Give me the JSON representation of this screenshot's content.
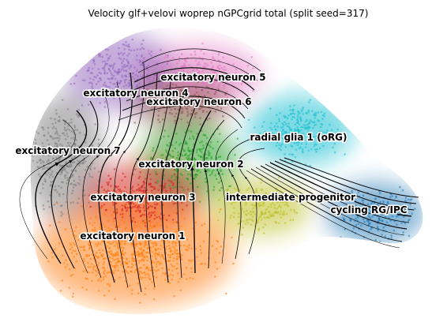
{
  "chart_data": {
    "type": "scatter",
    "title": "Velocity glf+velovi woprep nGPCgrid total (split seed=317)",
    "xlabel": "",
    "ylabel": "",
    "grid": false,
    "axes_visible": false,
    "overlay": "velocity streamlines",
    "clusters": [
      {
        "name": "excitatory neuron 5",
        "color": "#e377c2"
      },
      {
        "name": "excitatory neuron 4",
        "color": "#9467bd"
      },
      {
        "name": "excitatory neuron 6",
        "color": "#8c564b"
      },
      {
        "name": "radial glia 1 (oRG)",
        "color": "#17becf"
      },
      {
        "name": "excitatory neuron 7",
        "color": "#7f7f7f"
      },
      {
        "name": "excitatory neuron 2",
        "color": "#2ca02c"
      },
      {
        "name": "excitatory neuron 3",
        "color": "#d62728"
      },
      {
        "name": "intermediate progenitor",
        "color": "#bcbd22"
      },
      {
        "name": "cycling RG/IPC",
        "color": "#1f77b4"
      },
      {
        "name": "excitatory neuron 1",
        "color": "#ff7f0e"
      }
    ]
  }
}
